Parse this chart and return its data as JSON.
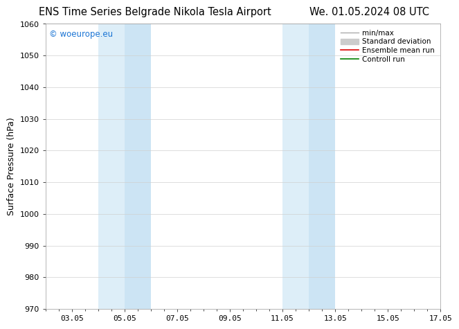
{
  "title_left": "ENS Time Series Belgrade Nikola Tesla Airport",
  "title_right": "We. 01.05.2024 08 UTC",
  "ylabel": "Surface Pressure (hPa)",
  "ylim": [
    970,
    1060
  ],
  "yticks": [
    970,
    980,
    990,
    1000,
    1010,
    1020,
    1030,
    1040,
    1050,
    1060
  ],
  "xlim": [
    1.0,
    16.0
  ],
  "xtick_labels": [
    "03.05",
    "05.05",
    "07.05",
    "09.05",
    "11.05",
    "13.05",
    "15.05",
    "17.05"
  ],
  "xtick_positions": [
    2.0,
    4.0,
    6.0,
    8.0,
    10.0,
    12.0,
    14.0,
    16.0
  ],
  "shaded_bands": [
    {
      "x_start": 3.0,
      "x_end": 4.0,
      "color": "#ddeef8"
    },
    {
      "x_start": 4.0,
      "x_end": 5.0,
      "color": "#cce4f4"
    },
    {
      "x_start": 10.0,
      "x_end": 11.0,
      "color": "#ddeef8"
    },
    {
      "x_start": 11.0,
      "x_end": 12.0,
      "color": "#cce4f4"
    }
  ],
  "watermark": "© woeurope.eu",
  "watermark_color": "#1a74d4",
  "background_color": "#ffffff",
  "grid_color": "#d0d0d0",
  "title_fontsize": 10.5,
  "label_fontsize": 9,
  "tick_fontsize": 8,
  "legend_fontsize": 7.5
}
